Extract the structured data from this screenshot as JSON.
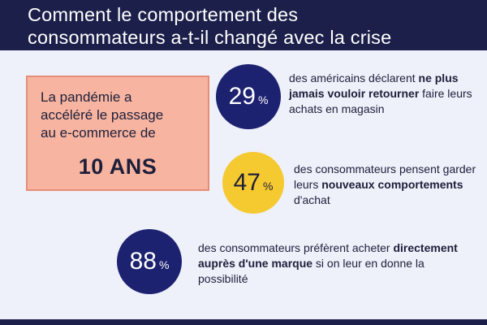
{
  "header": {
    "title_line1": "Comment le comportement des",
    "title_line2": "consommateurs a-t-il changé avec la crise"
  },
  "callout": {
    "line1": "La pandémie a",
    "line2": "accéléré le passage",
    "line3": "au e-commerce de",
    "value": "10 ANS"
  },
  "stats": [
    {
      "number": "29",
      "unit": "%",
      "pre": "des américains déclarent ",
      "bold": "ne plus jamais vouloir retourner",
      "post": " faire leurs achats en magasin"
    },
    {
      "number": "47",
      "unit": "%",
      "pre": "des consommateurs pensent garder leurs ",
      "bold": "nouveaux comportements",
      "post": " d'achat"
    },
    {
      "number": "88",
      "unit": "%",
      "pre": "des consommateurs préfèrent acheter ",
      "bold": "directement auprès d'une marque",
      "post": " si on leur en donne la possibilité"
    }
  ],
  "colors": {
    "navy": "#1c1f4a",
    "circle_blue": "#1c2170",
    "circle_yellow": "#f5c930",
    "callout_salmon": "#f7b4a0",
    "background": "#eef0fa"
  }
}
